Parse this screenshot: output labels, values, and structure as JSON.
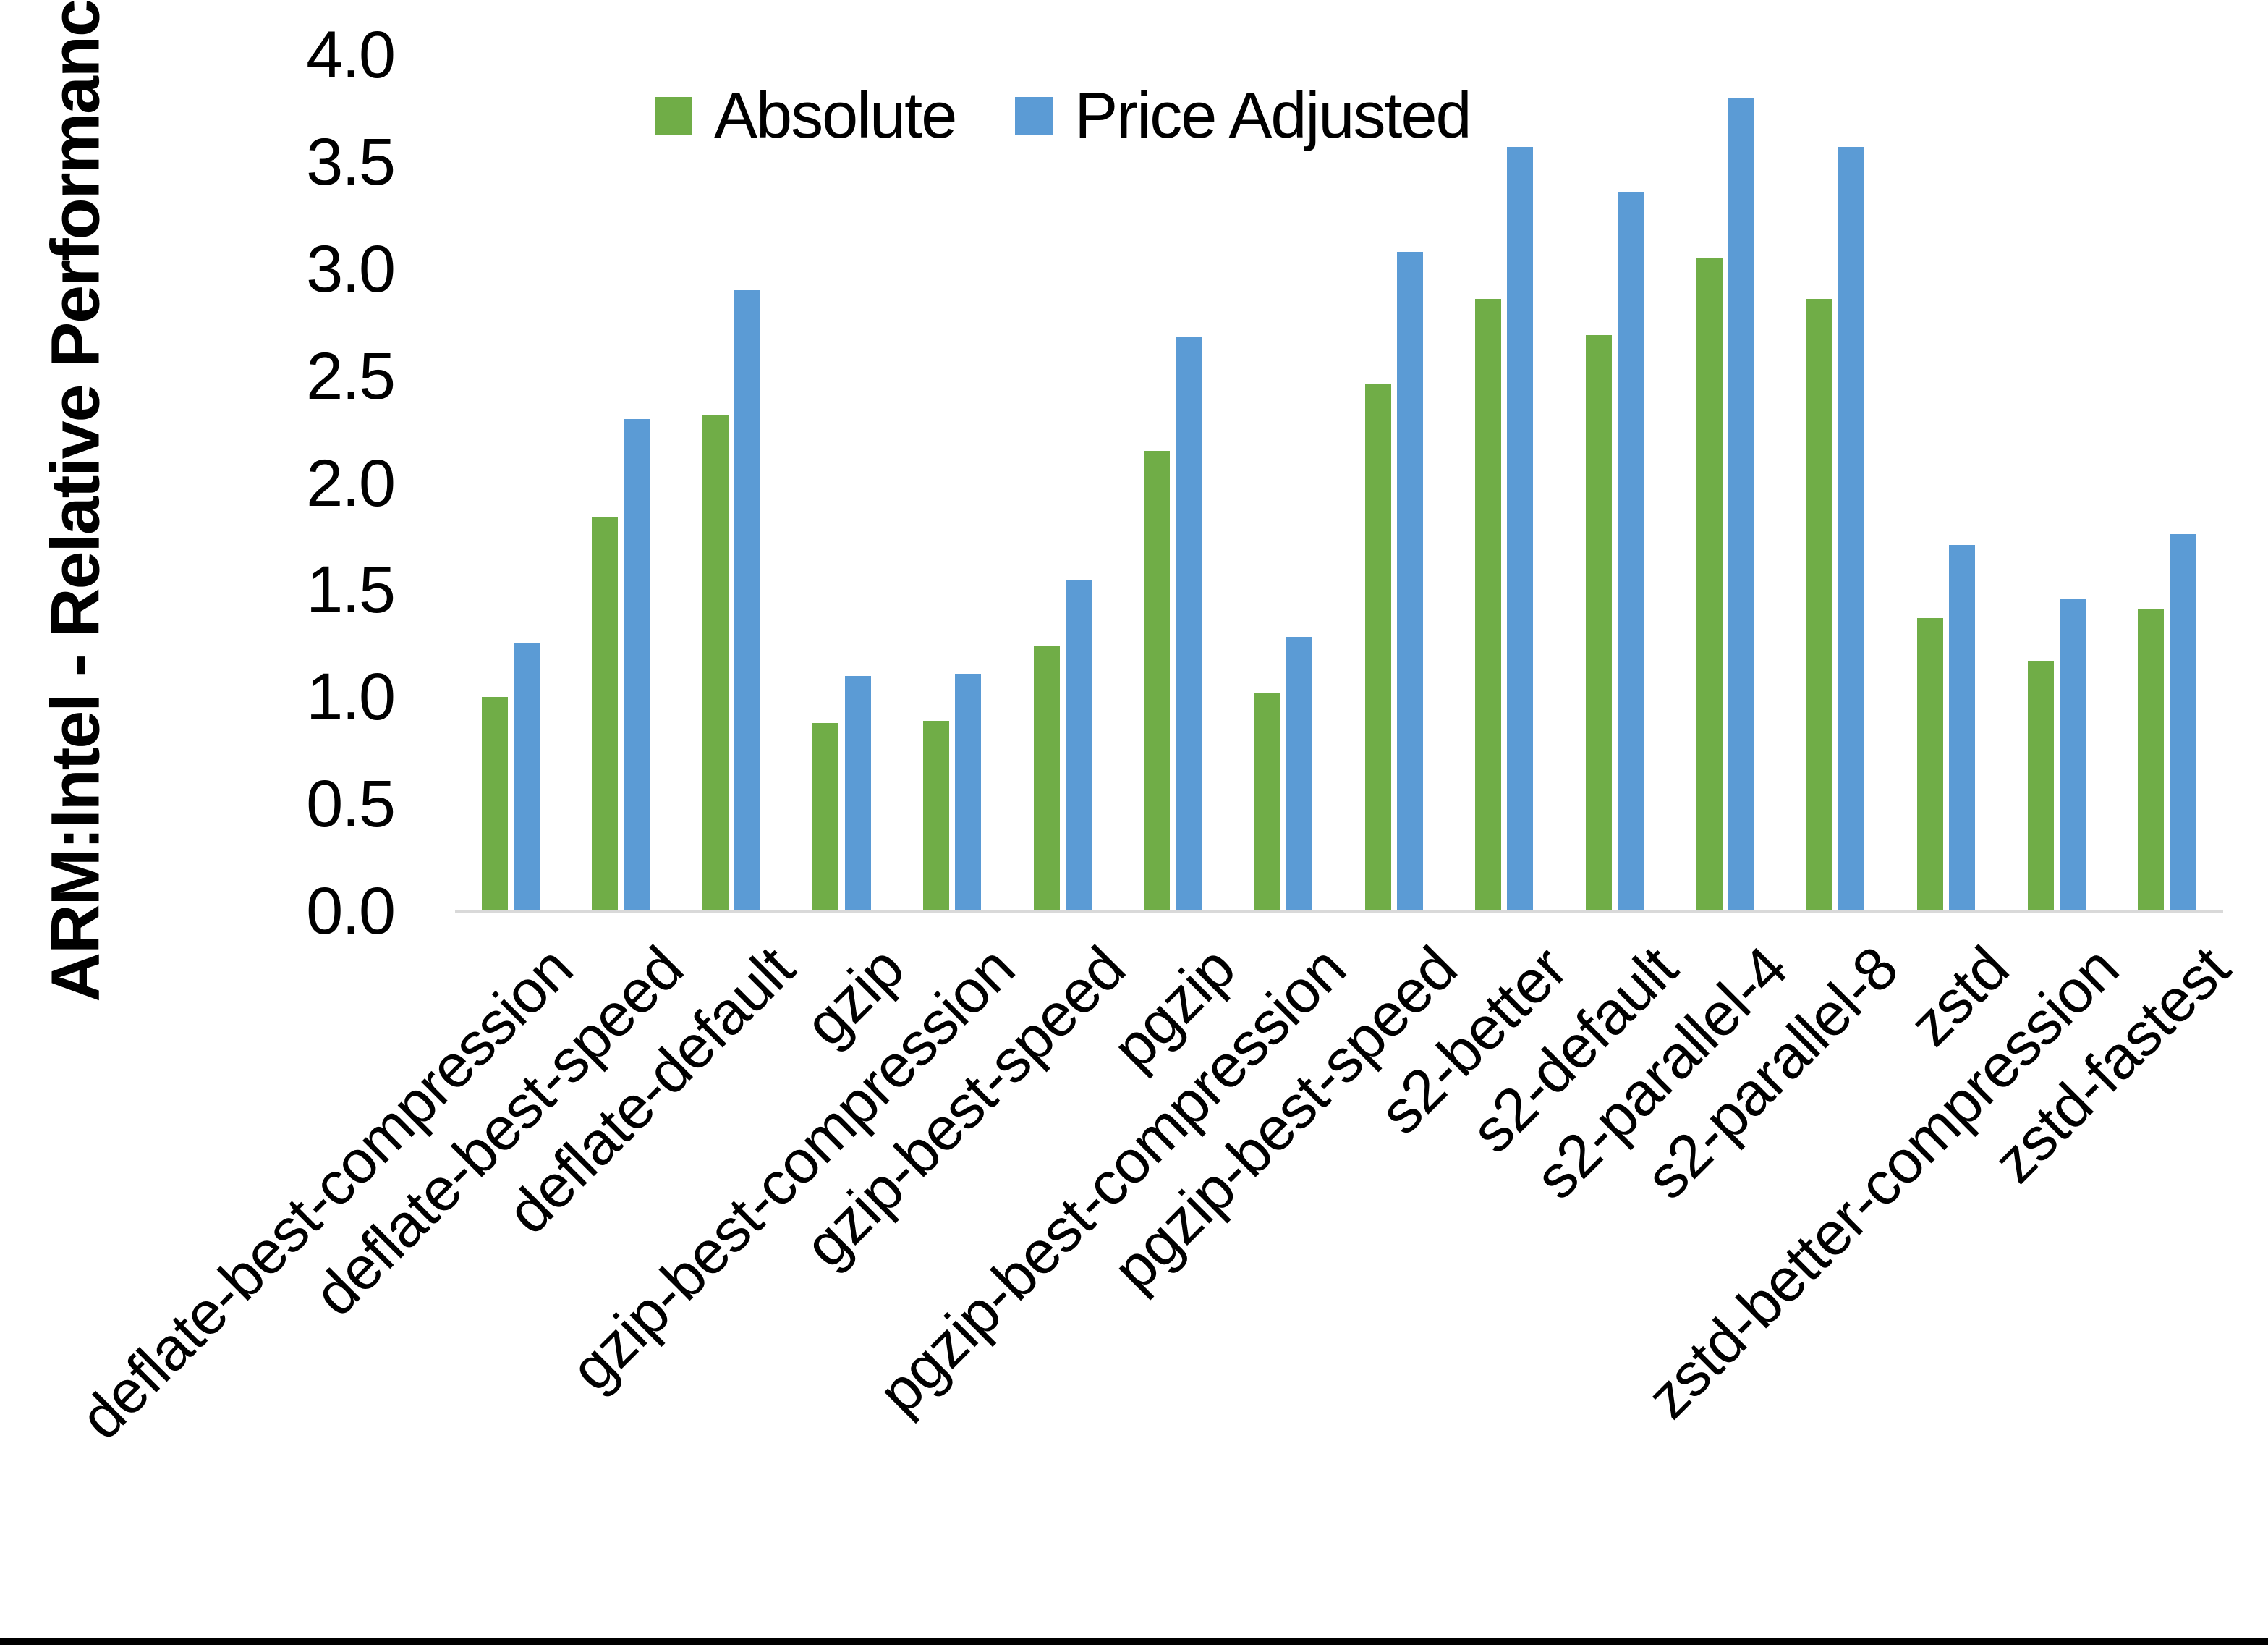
{
  "chart_data": {
    "type": "bar",
    "title": "",
    "xlabel": "",
    "ylabel": "ARM:Intel - Relative Performance",
    "ylim": [
      0.0,
      4.0
    ],
    "ytick_step": 0.5,
    "ytick_labels": [
      "0.0",
      "0.5",
      "1.0",
      "1.5",
      "2.0",
      "2.5",
      "3.0",
      "3.5",
      "4.0"
    ],
    "grid": false,
    "legend_position": "top-center",
    "categories": [
      "deflate-best-compression",
      "deflate-best-speed",
      "deflate-default",
      "gzip",
      "gzip-best-compression",
      "gzip-best-speed",
      "pgzip",
      "pgzip-best-compression",
      "pgzip-best-speed",
      "s2-better",
      "s2-default",
      "s2-parallel-4",
      "s2-parallel-8",
      "zstd",
      "zstd-better-compression",
      "zstd-fastest"
    ],
    "series": [
      {
        "name": "Absolute",
        "color": "#70AD47",
        "values": [
          1.0,
          1.84,
          2.32,
          0.88,
          0.89,
          1.24,
          2.15,
          1.02,
          2.46,
          2.86,
          2.69,
          3.05,
          2.86,
          1.37,
          1.17,
          1.41
        ]
      },
      {
        "name": "Price Adjusted",
        "color": "#5B9BD5",
        "values": [
          1.25,
          2.3,
          2.9,
          1.1,
          1.11,
          1.55,
          2.68,
          1.28,
          3.08,
          3.57,
          3.36,
          3.8,
          3.57,
          1.71,
          1.46,
          1.76
        ]
      }
    ]
  },
  "page": {
    "axis_line_color": "#D9D9D9",
    "bottom_bar_color": "#000000",
    "background_color": "#FFFFFF"
  }
}
